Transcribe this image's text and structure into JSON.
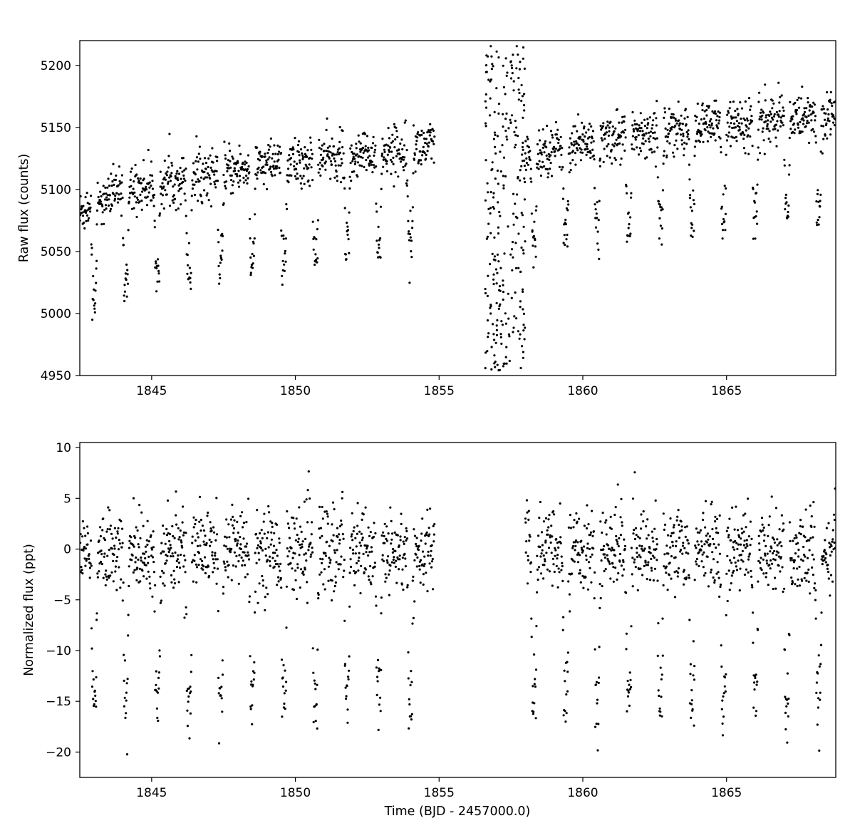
{
  "figure": {
    "xlabel": "Time (BJD - 2457000.0)"
  },
  "chart_data": [
    {
      "type": "scatter",
      "name": "raw-flux",
      "title": "",
      "xlabel": "",
      "ylabel": "Raw flux (counts)",
      "xlim": [
        1842.5,
        1868.8
      ],
      "ylim": [
        4950,
        5220
      ],
      "xticks": [
        1845,
        1850,
        1855,
        1860,
        1865
      ],
      "yticks": [
        4950,
        5000,
        5050,
        5100,
        5150,
        5200
      ],
      "xtick_labels": [
        "1845",
        "1850",
        "1855",
        "1860",
        "1865"
      ],
      "ytick_labels": [
        "4950",
        "5000",
        "5050",
        "5100",
        "5150",
        "5200"
      ],
      "grid": false,
      "marker_color": "#000000",
      "segments": [
        {
          "t_start": 1842.5,
          "t_end": 1854.85,
          "baseline_start": 5078,
          "baseline_end": 5135,
          "scatter": 10
        },
        {
          "t_start": 1858.0,
          "t_end": 1868.8,
          "baseline_start": 5122,
          "baseline_end": 5160,
          "scatter": 10
        }
      ],
      "ramp": {
        "t_start": 1856.6,
        "t_end": 1858.0,
        "flux_min": 4952,
        "flux_max": 5218
      },
      "transit_times": [
        1843.0,
        1844.1,
        1845.2,
        1846.3,
        1847.4,
        1848.5,
        1849.6,
        1850.7,
        1851.8,
        1852.9,
        1854.0,
        1858.3,
        1859.4,
        1860.5,
        1861.6,
        1862.7,
        1863.8,
        1864.9,
        1866.0,
        1867.1,
        1868.2
      ],
      "transit_depth": 80
    },
    {
      "type": "scatter",
      "name": "normalized-flux",
      "title": "",
      "xlabel": "Time (BJD - 2457000.0)",
      "ylabel": "Normalized flux (ppt)",
      "xlim": [
        1842.5,
        1868.8
      ],
      "ylim": [
        -22.5,
        10.5
      ],
      "xticks": [
        1845,
        1850,
        1855,
        1860,
        1865
      ],
      "yticks": [
        10,
        5,
        0,
        -5,
        -10,
        -15,
        -20
      ],
      "xtick_labels": [
        "1845",
        "1850",
        "1855",
        "1860",
        "1865"
      ],
      "ytick_labels": [
        "10",
        "5",
        "0",
        "−5",
        "−10",
        "−15",
        "−20"
      ],
      "grid": false,
      "marker_color": "#000000",
      "segments": [
        {
          "t_start": 1842.5,
          "t_end": 1854.85,
          "baseline_start": 0,
          "baseline_end": 0,
          "scatter": 2
        },
        {
          "t_start": 1858.0,
          "t_end": 1868.8,
          "baseline_start": 0,
          "baseline_end": 0,
          "scatter": 2
        }
      ],
      "transit_times": [
        1843.0,
        1844.1,
        1845.2,
        1846.3,
        1847.4,
        1848.5,
        1849.6,
        1850.7,
        1851.8,
        1852.9,
        1854.0,
        1858.3,
        1859.4,
        1860.5,
        1861.6,
        1862.7,
        1863.8,
        1864.9,
        1866.0,
        1867.1,
        1868.2
      ],
      "transit_depth": 15.5
    }
  ]
}
